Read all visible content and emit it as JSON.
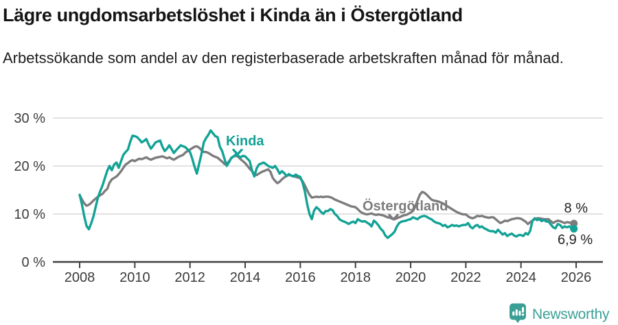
{
  "header": {
    "title": "Lägre ungdomsarbetslöshet i Kinda än i Östergötland",
    "subtitle": "Arbetssökande som andel av den registerbaserade arbetskraften månad för månad."
  },
  "chart_data": {
    "type": "line",
    "unit": "%",
    "frequency": "monthly",
    "x_start_year": 2008,
    "x_end": "2025-12",
    "ylim": [
      0,
      30
    ],
    "grid": "horizontal",
    "legend_position": "inline-labels",
    "yticks": [
      {
        "value": 30,
        "label": "30 %"
      },
      {
        "value": 20,
        "label": "20 %"
      },
      {
        "value": 10,
        "label": "10 %"
      },
      {
        "value": 0,
        "label": "0 %"
      }
    ],
    "xticks": [
      {
        "value": 2008,
        "label": "2008"
      },
      {
        "value": 2010,
        "label": "2010"
      },
      {
        "value": 2012,
        "label": "2012"
      },
      {
        "value": 2014,
        "label": "2014"
      },
      {
        "value": 2016,
        "label": "2016"
      },
      {
        "value": 2018,
        "label": "2018"
      },
      {
        "value": 2020,
        "label": "2020"
      },
      {
        "value": 2022,
        "label": "2022"
      },
      {
        "value": 2024,
        "label": "2024"
      },
      {
        "value": 2026,
        "label": "2026"
      }
    ],
    "series": [
      {
        "name": "Kinda",
        "color": "#12a296",
        "end_label": "6,9 %",
        "last_value": 6.9,
        "values": [
          14.0,
          12.0,
          9.5,
          7.5,
          6.8,
          8.0,
          9.5,
          11.5,
          13.5,
          14.8,
          16.0,
          17.5,
          19.0,
          20.0,
          19.1,
          20.3,
          20.7,
          19.6,
          21.0,
          22.3,
          22.9,
          23.4,
          25.0,
          26.3,
          26.2,
          26.0,
          25.5,
          24.9,
          25.2,
          25.6,
          24.5,
          23.6,
          24.2,
          24.9,
          25.1,
          25.3,
          24.0,
          23.1,
          23.6,
          24.3,
          23.5,
          22.7,
          23.3,
          23.8,
          24.3,
          24.1,
          23.9,
          23.4,
          22.9,
          21.5,
          19.8,
          18.4,
          20.5,
          22.5,
          24.9,
          25.8,
          26.5,
          27.4,
          26.8,
          26.2,
          26.0,
          24.0,
          23.1,
          21.5,
          20.0,
          20.8,
          21.7,
          22.0,
          22.4,
          22.1,
          21.8,
          22.1,
          22.0,
          21.5,
          21.0,
          19.0,
          17.8,
          19.5,
          20.3,
          20.5,
          20.7,
          20.4,
          20.0,
          19.8,
          19.6,
          20.0,
          19.3,
          18.4,
          18.9,
          18.5,
          17.9,
          18.3,
          18.0,
          17.8,
          18.2,
          17.9,
          17.7,
          16.5,
          14.6,
          12.0,
          10.0,
          8.9,
          10.7,
          11.4,
          11.0,
          10.4,
          10.0,
          10.6,
          10.6,
          11.0,
          10.8,
          10.0,
          9.6,
          8.9,
          8.6,
          8.4,
          8.2,
          7.9,
          8.2,
          8.4,
          8.1,
          8.9,
          8.6,
          8.4,
          8.5,
          8.2,
          7.9,
          7.4,
          8.6,
          8.2,
          7.6,
          6.9,
          6.4,
          5.5,
          5.0,
          5.4,
          5.8,
          6.3,
          7.4,
          8.1,
          8.4,
          8.5,
          8.6,
          8.8,
          8.9,
          9.3,
          9.1,
          8.9,
          9.3,
          9.5,
          9.6,
          9.4,
          9.1,
          8.9,
          8.5,
          8.2,
          8.1,
          7.9,
          7.5,
          7.7,
          7.2,
          7.4,
          7.7,
          7.5,
          7.6,
          7.4,
          7.6,
          7.7,
          7.7,
          8.1,
          7.3,
          7.0,
          7.5,
          7.7,
          7.2,
          7.4,
          7.0,
          6.8,
          6.5,
          6.4,
          6.4,
          6.1,
          6.7,
          6.2,
          5.7,
          6.0,
          5.4,
          5.7,
          5.9,
          5.5,
          5.3,
          5.6,
          5.6,
          5.4,
          6.0,
          5.7,
          6.5,
          8.6,
          9.1,
          8.7,
          8.9,
          8.5,
          8.8,
          8.4,
          8.4,
          7.8,
          7.2,
          7.0,
          7.9,
          7.7,
          7.1,
          7.4,
          7.2,
          7.4,
          7.1,
          6.9
        ]
      },
      {
        "name": "Östergötland",
        "color": "#7c7c7e",
        "end_label": "8 %",
        "last_value": 8.0,
        "values": [
          13.9,
          13.0,
          12.2,
          11.7,
          11.9,
          12.3,
          12.8,
          13.2,
          13.6,
          13.9,
          14.2,
          14.8,
          15.2,
          16.5,
          17.2,
          17.5,
          17.8,
          18.3,
          18.9,
          19.6,
          20.3,
          20.6,
          21.0,
          21.2,
          21.0,
          21.3,
          21.5,
          21.4,
          21.6,
          21.8,
          21.5,
          21.3,
          21.5,
          21.7,
          21.8,
          21.9,
          22.0,
          21.8,
          21.6,
          21.8,
          21.5,
          21.3,
          21.6,
          21.9,
          22.1,
          22.3,
          22.8,
          23.1,
          23.4,
          23.7,
          24.0,
          24.1,
          23.8,
          23.3,
          22.9,
          22.9,
          22.7,
          22.4,
          22.1,
          21.9,
          21.7,
          21.3,
          20.9,
          20.4,
          20.3,
          21.0,
          21.6,
          22.0,
          22.1,
          21.9,
          21.4,
          21.0,
          20.6,
          20.0,
          19.4,
          18.9,
          18.3,
          18.1,
          18.4,
          18.7,
          18.9,
          19.1,
          19.3,
          18.8,
          17.5,
          16.9,
          16.4,
          16.7,
          17.2,
          17.6,
          17.9,
          18.1,
          18.0,
          17.9,
          17.7,
          17.6,
          17.4,
          16.8,
          15.9,
          14.9,
          14.0,
          13.4,
          13.5,
          13.6,
          13.5,
          13.6,
          13.5,
          13.6,
          13.6,
          13.5,
          13.3,
          13.0,
          12.8,
          12.6,
          12.4,
          12.2,
          12.0,
          11.8,
          11.6,
          11.5,
          11.4,
          11.0,
          10.5,
          10.2,
          10.0,
          9.9,
          10.0,
          10.1,
          9.9,
          9.8,
          9.9,
          9.8,
          9.7,
          9.5,
          9.3,
          9.2,
          9.0,
          8.9,
          9.1,
          9.3,
          9.5,
          9.7,
          9.8,
          10.0,
          10.3,
          10.6,
          11.5,
          12.8,
          14.0,
          14.6,
          14.4,
          14.0,
          13.5,
          13.0,
          12.8,
          12.7,
          12.6,
          12.4,
          12.2,
          11.9,
          11.6,
          11.3,
          11.0,
          10.7,
          10.4,
          10.2,
          10.0,
          9.9,
          9.9,
          9.5,
          9.2,
          9.1,
          9.3,
          9.6,
          9.5,
          9.6,
          9.4,
          9.3,
          9.2,
          9.3,
          9.3,
          8.9,
          8.5,
          8.1,
          8.3,
          8.6,
          8.5,
          8.7,
          8.9,
          9.0,
          9.1,
          9.1,
          9.0,
          8.7,
          8.4,
          7.9,
          8.3,
          8.6,
          8.9,
          9.1,
          9.1,
          9.0,
          8.9,
          8.9,
          8.9,
          8.5,
          8.1,
          8.4,
          8.6,
          8.5,
          8.3,
          8.1,
          8.3,
          8.2,
          8.1,
          8.0
        ]
      }
    ]
  },
  "footer": {
    "brand": "Newsworthy",
    "brand_color": "#3aa096",
    "logo_icon": "bar-chart-pin-icon"
  }
}
